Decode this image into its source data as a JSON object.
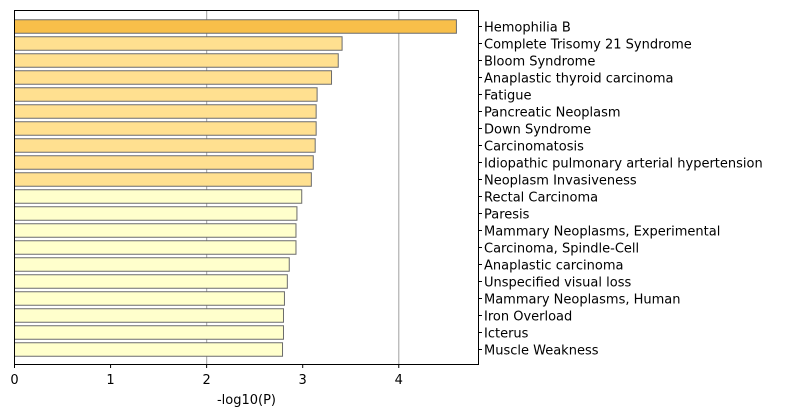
{
  "chart_data": {
    "type": "bar",
    "orientation": "horizontal",
    "title": "",
    "xlabel": "-log10(P)",
    "ylabel": "",
    "xlim": [
      0,
      4.83
    ],
    "xticks": [
      0,
      1,
      2,
      3,
      4
    ],
    "xtick_labels": [
      "0",
      "1",
      "2",
      "3",
      "4"
    ],
    "grid": "vertical lines at x = 2 and x = 4",
    "category_labels_side": "right",
    "categories": [
      "Hemophilia B",
      "Complete Trisomy 21 Syndrome",
      "Bloom Syndrome",
      "Anaplastic thyroid carcinoma",
      "Fatigue",
      "Pancreatic Neoplasm",
      "Down Syndrome",
      "Carcinomatosis",
      "Idiopathic pulmonary arterial hypertension",
      "Neoplasm Invasiveness",
      "Rectal Carcinoma",
      "Paresis",
      "Mammary Neoplasms, Experimental",
      "Carcinoma, Spindle-Cell",
      "Anaplastic carcinoma",
      "Unspecified visual loss",
      "Mammary Neoplasms, Human",
      "Iron Overload",
      "Icterus",
      "Muscle Weakness"
    ],
    "values": [
      4.6,
      3.41,
      3.37,
      3.3,
      3.15,
      3.14,
      3.14,
      3.13,
      3.11,
      3.09,
      2.99,
      2.94,
      2.93,
      2.93,
      2.86,
      2.84,
      2.81,
      2.8,
      2.8,
      2.79
    ],
    "bar_colors": [
      "#f8bf4a",
      "#ffe090",
      "#ffe090",
      "#ffe090",
      "#ffe090",
      "#ffe090",
      "#ffe090",
      "#ffe090",
      "#ffe090",
      "#ffe090",
      "#ffffcc",
      "#ffffcc",
      "#ffffcc",
      "#ffffcc",
      "#ffffcc",
      "#ffffcc",
      "#ffffcc",
      "#ffffcc",
      "#ffffcc",
      "#ffffcc"
    ],
    "bar_edge_color": "#6b6b6b",
    "grid_color": "#b0b0b0"
  }
}
